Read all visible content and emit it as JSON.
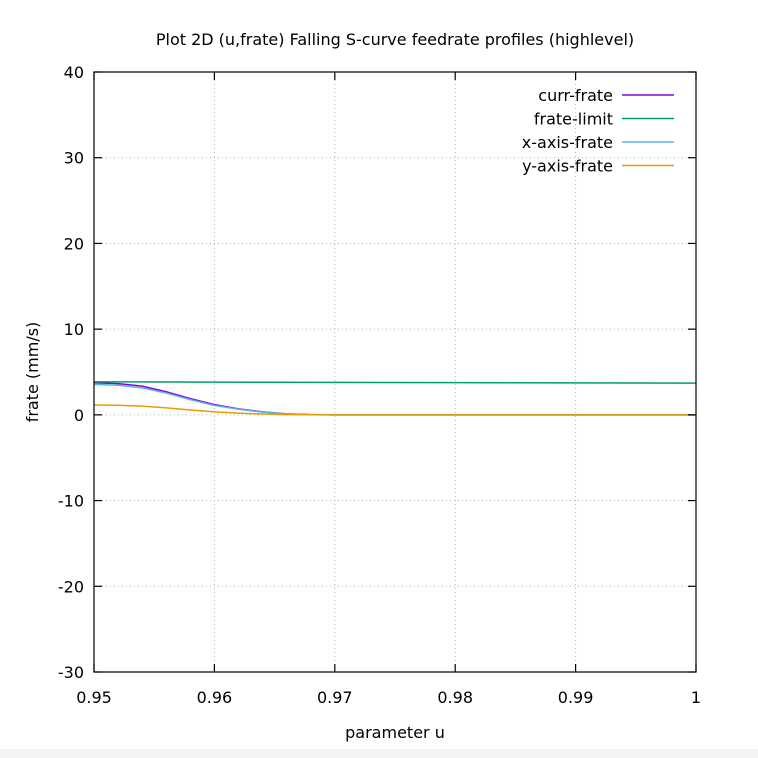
{
  "chart_data": {
    "type": "line",
    "title": "Plot 2D (u,frate) Falling S-curve feedrate profiles (highlevel)",
    "xlabel": "parameter u",
    "ylabel": "frate (mm/s)",
    "xlim": [
      0.95,
      1.0
    ],
    "ylim": [
      -30,
      40
    ],
    "x_ticks": [
      0.95,
      0.96,
      0.97,
      0.98,
      0.99,
      1.0
    ],
    "x_tick_labels": [
      "0.95",
      "0.96",
      "0.97",
      "0.98",
      "0.99",
      "1"
    ],
    "y_ticks": [
      -30,
      -20,
      -10,
      0,
      10,
      20,
      30,
      40
    ],
    "y_tick_labels": [
      "-30",
      "-20",
      "-10",
      "0",
      "10",
      "20",
      "30",
      "40"
    ],
    "grid": true,
    "legend_position": "top-right",
    "series": [
      {
        "name": "curr-frate",
        "color": "#9400d3",
        "x": [
          0.95,
          0.952,
          0.954,
          0.956,
          0.958,
          0.96,
          0.962,
          0.964,
          0.966,
          0.968,
          0.97,
          0.98,
          0.99,
          1.0
        ],
        "y": [
          3.75,
          3.65,
          3.35,
          2.7,
          1.9,
          1.2,
          0.7,
          0.35,
          0.12,
          0.03,
          0.0,
          0.0,
          0.0,
          0.0
        ]
      },
      {
        "name": "frate-limit",
        "color": "#009e73",
        "x": [
          0.95,
          0.96,
          0.97,
          0.98,
          0.99,
          1.0
        ],
        "y": [
          3.85,
          3.82,
          3.79,
          3.76,
          3.73,
          3.7
        ]
      },
      {
        "name": "x-axis-frate",
        "color": "#56b4e9",
        "x": [
          0.95,
          0.952,
          0.954,
          0.956,
          0.958,
          0.96,
          0.962,
          0.964,
          0.966,
          0.968,
          0.97,
          0.98,
          0.99,
          1.0
        ],
        "y": [
          3.55,
          3.45,
          3.15,
          2.55,
          1.78,
          1.1,
          0.65,
          0.32,
          0.1,
          0.02,
          0.0,
          0.0,
          0.0,
          0.0
        ]
      },
      {
        "name": "y-axis-frate",
        "color": "#e69f00",
        "x": [
          0.95,
          0.952,
          0.954,
          0.956,
          0.958,
          0.96,
          0.962,
          0.964,
          0.966,
          0.968,
          0.97,
          0.98,
          0.99,
          1.0
        ],
        "y": [
          1.15,
          1.12,
          1.02,
          0.82,
          0.57,
          0.35,
          0.2,
          0.1,
          0.03,
          0.01,
          0.0,
          0.0,
          0.0,
          0.0
        ]
      }
    ]
  }
}
